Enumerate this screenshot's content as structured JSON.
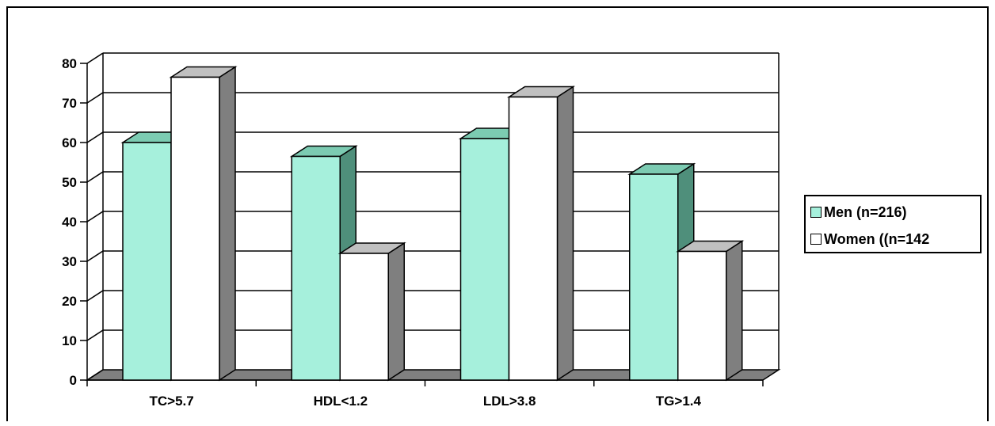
{
  "chart_data": {
    "type": "bar",
    "categories": [
      "TC>5.7",
      "HDL<1.2",
      "LDL>3.8",
      "TG>1.4"
    ],
    "series": [
      {
        "name": "Men (n=216)",
        "values": [
          60,
          56.5,
          61,
          52
        ],
        "color": "#a6f0dc"
      },
      {
        "name": "Women ((n=142",
        "values": [
          76.5,
          32,
          71.5,
          32.5
        ],
        "color": "#ffffff"
      }
    ],
    "ylim": [
      0,
      80
    ],
    "yticks": [
      "0",
      "10",
      "20",
      "30",
      "40",
      "50",
      "60",
      "70",
      "80"
    ],
    "grid": true,
    "legend_position": "right",
    "style": "3d-clustered-column",
    "wall_color": "#808080"
  }
}
